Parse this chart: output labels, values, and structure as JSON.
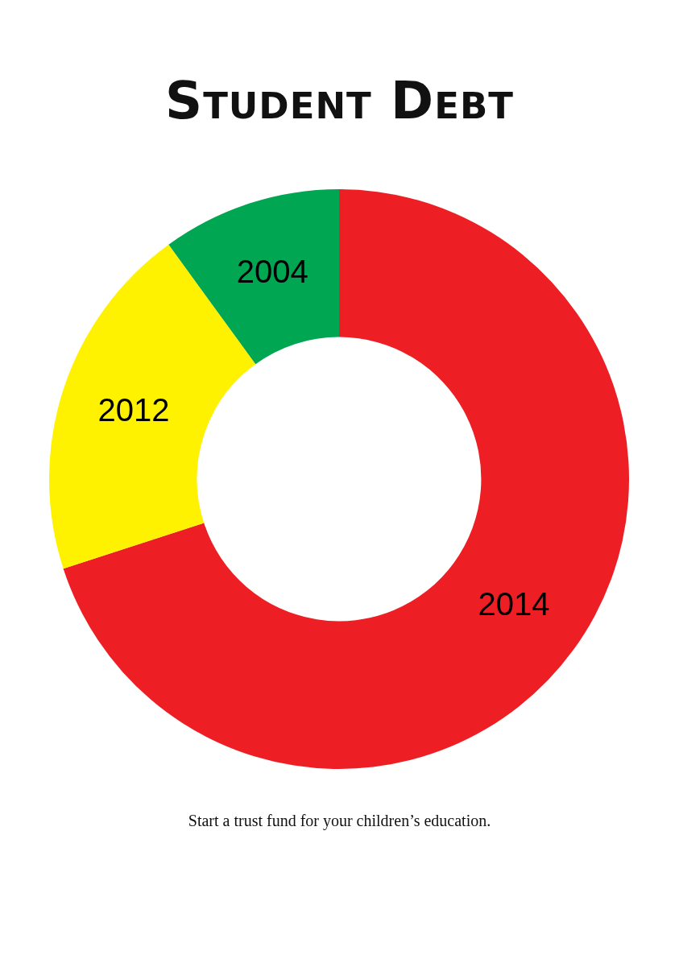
{
  "chart_data": {
    "type": "donut",
    "title": "Student Debt",
    "categories": [
      "2014",
      "2012",
      "2004"
    ],
    "values": [
      70,
      20,
      10
    ],
    "colors": [
      "#ed1f24",
      "#fff200",
      "#00a651"
    ],
    "annotations": [
      "Start a trust fund for your children’s education."
    ]
  }
}
